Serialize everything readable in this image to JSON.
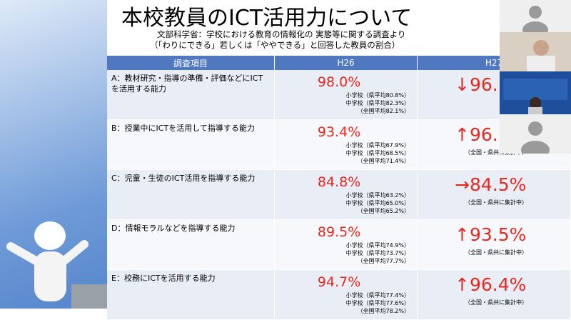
{
  "slide": {
    "title": "本校教員のICT活用力について",
    "subtitle": [
      "文部科学省：学校における教育の情報化の 実態等に関する調査より",
      "（「わりにできる」若しくは「ややできる」と回答した教員の割合）"
    ],
    "table": {
      "header": [
        "調査項目",
        "H26",
        "H27"
      ],
      "rows": [
        {
          "item": "A：教材研究・指導の準備・評価などにICTを活用する能力",
          "h26": "98.0%",
          "h26_notes": [
            "小学校（県平均80.8%）",
            "中学校（県平均82.3%）",
            "（全国平均82.1%）"
          ],
          "h27": "↓96.",
          "h27_notes": []
        },
        {
          "item": "B：授業中にICTを活用して指導する能力",
          "h26": "93.4%",
          "h26_notes": [
            "小学校（県平均67.9%）",
            "中学校（県平均68.5%）",
            "（全国平均71.4%）"
          ],
          "h27": "↑96.",
          "h27_notes": [
            "（全国・県共に集計中）"
          ]
        },
        {
          "item": "C：児童・生徒のICT活用を指導する能力",
          "h26": "84.8%",
          "h26_notes": [
            "小学校（県平均63.2%）",
            "中学校（県平均65.0%）",
            "（全国平均65.2%）"
          ],
          "h27": "→84.5%",
          "h27_notes": [
            "（全国・県共に集計中）"
          ]
        },
        {
          "item": "D：情報モラルなどを指導する能力",
          "h26": "89.5%",
          "h26_notes": [
            "小学校（県平均74.9%）",
            "中学校（県平均73.7%）",
            "（全国平均77.7%）"
          ],
          "h27": "↑93.5%",
          "h27_notes": [
            "（全国・県共に集計中）"
          ]
        },
        {
          "item": "E：校務にICTを活用する能力",
          "h26": "94.7%",
          "h26_notes": [
            "小学校（県平均77.4%）",
            "中学校（県平均77.6%）",
            "（全国平均78.2%）"
          ],
          "h27": "↑96.4%",
          "h27_notes": [
            "（全国・県共に集計中）"
          ]
        }
      ]
    }
  }
}
